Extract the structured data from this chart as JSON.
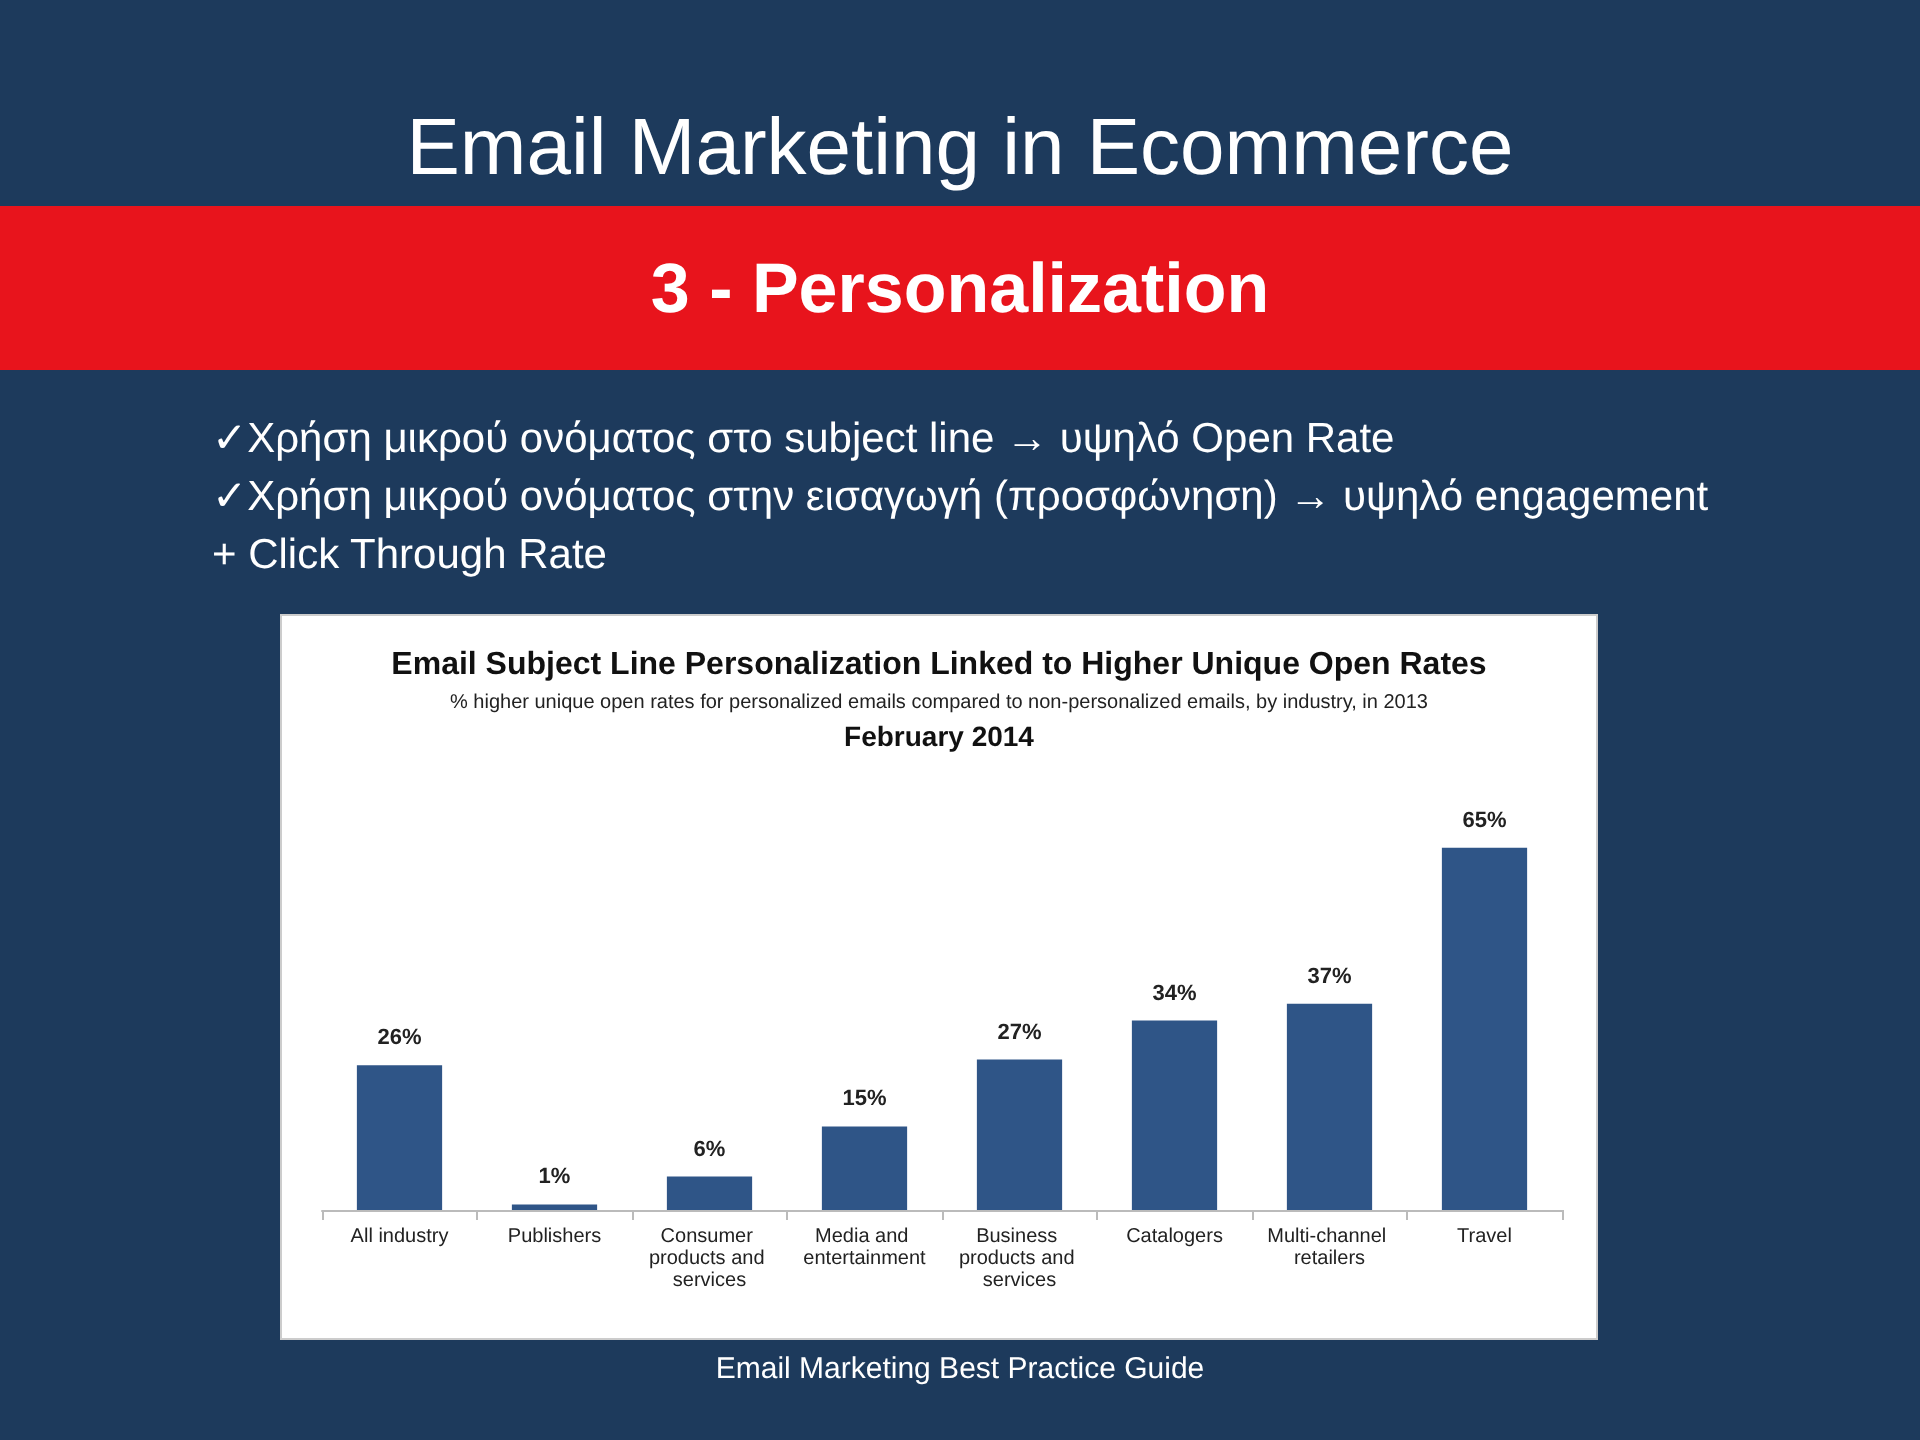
{
  "chart_data": {
    "type": "bar",
    "title": "Email Subject Line Personalization Linked to Higher Unique Open Rates",
    "subtitle": "% higher unique open rates for personalized emails compared to non-personalized emails, by industry, in 2013",
    "annotations": [
      "Email Marketing in Ecommerce",
      "3 - Personalization",
      "✓Χρήση μικρού ονόματος στο subject line → υψηλό Open Rate",
      "✓Χρήση μικρού ονόματος στην εισαγωγή (προσφώνηση) → υψηλό engagement + Click Through Rate",
      "February 2014",
      "Email Marketing Best Practice Guide"
    ],
    "categories": [
      "All industry",
      "Publishers",
      "Consumer products and services",
      "Media and entertainment",
      "Business products and services",
      "Catalogers",
      "Multi-channel retailers",
      "Travel"
    ],
    "values": [
      26,
      1,
      6,
      15,
      27,
      34,
      37,
      65
    ],
    "value_labels": [
      "26%",
      "1%",
      "6%",
      "15%",
      "27%",
      "34%",
      "37%",
      "65%"
    ],
    "color": "#2f5587"
  }
}
